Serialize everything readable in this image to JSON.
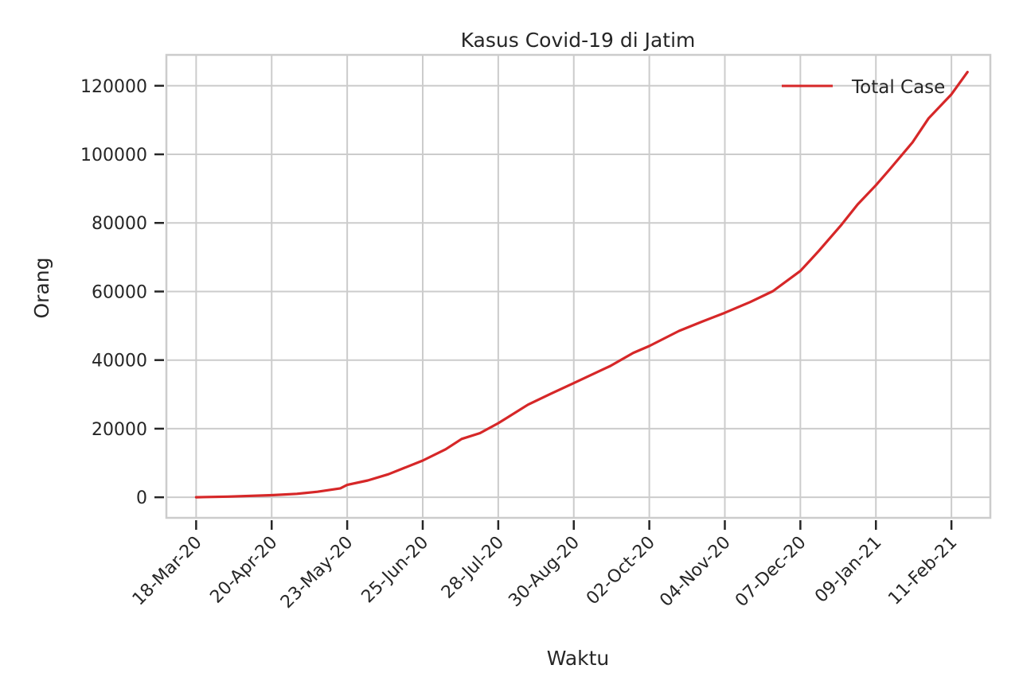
{
  "chart_data": {
    "type": "line",
    "title": "Kasus Covid-19 di Jatim",
    "xlabel": "Waktu",
    "ylabel": "Orang",
    "x_tick_labels": [
      "18-Mar-20",
      "20-Apr-20",
      "23-May-20",
      "25-Jun-20",
      "28-Jul-20",
      "30-Aug-20",
      "02-Oct-20",
      "04-Nov-20",
      "07-Dec-20",
      "09-Jan-21",
      "11-Feb-21"
    ],
    "y_tick_labels": [
      "0",
      "20000",
      "40000",
      "60000",
      "80000",
      "100000",
      "120000"
    ],
    "y_ticks": [
      0,
      20000,
      40000,
      60000,
      80000,
      100000,
      120000
    ],
    "ylim": [
      -6000,
      129000
    ],
    "xlim": [
      "2020-03-05",
      "2021-02-28"
    ],
    "grid": true,
    "legend_position": "top-right",
    "colors": {
      "series": "#d62728",
      "grid": "#cccccc",
      "text": "#262626"
    },
    "series": [
      {
        "name": "Total Case",
        "x": [
          "2020-03-18",
          "2020-04-01",
          "2020-04-20",
          "2020-05-01",
          "2020-05-10",
          "2020-05-20",
          "2020-05-23",
          "2020-06-01",
          "2020-06-10",
          "2020-06-25",
          "2020-07-05",
          "2020-07-12",
          "2020-07-20",
          "2020-07-28",
          "2020-08-10",
          "2020-08-20",
          "2020-08-30",
          "2020-09-15",
          "2020-09-25",
          "2020-10-02",
          "2020-10-15",
          "2020-10-25",
          "2020-11-04",
          "2020-11-15",
          "2020-11-25",
          "2020-12-07",
          "2020-12-15",
          "2020-12-25",
          "2021-01-01",
          "2021-01-09",
          "2021-01-15",
          "2021-01-25",
          "2021-02-01",
          "2021-02-11",
          "2021-02-18"
        ],
        "values": [
          0,
          200,
          600,
          1000,
          1600,
          2600,
          3600,
          4900,
          6700,
          10700,
          14000,
          17000,
          18700,
          21600,
          27000,
          30200,
          33300,
          38300,
          42100,
          44100,
          48500,
          51200,
          53800,
          56900,
          60100,
          66000,
          71800,
          79500,
          85400,
          91000,
          95600,
          103500,
          110500,
          117500,
          124000
        ]
      }
    ]
  }
}
